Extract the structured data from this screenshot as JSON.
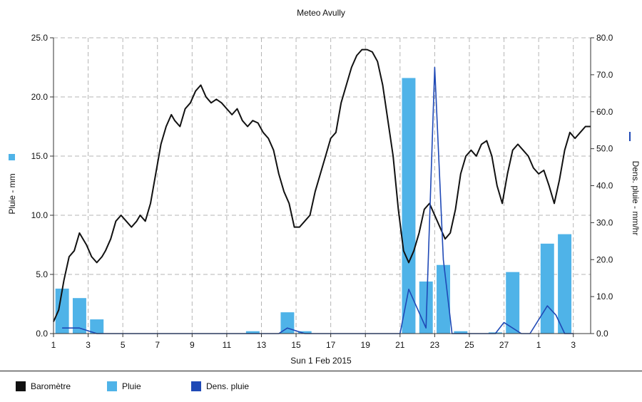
{
  "chart_data": {
    "type": "bar+line",
    "title": "Meteo  Avully",
    "xlabel": "Sun 1 Feb 2015",
    "ylabel_left": "Pluie - mm",
    "ylabel_right": "Dens. pluie - mm/hr",
    "x_ticks": [
      "1",
      "3",
      "5",
      "7",
      "9",
      "11",
      "13",
      "15",
      "17",
      "19",
      "21",
      "23",
      "25",
      "27",
      "1",
      "3"
    ],
    "xlim": [
      0,
      31
    ],
    "ylim_left": [
      0,
      25
    ],
    "yticks_left": [
      "0.0",
      "5.0",
      "10.0",
      "15.0",
      "20.0",
      "25.0"
    ],
    "ylim_right": [
      0,
      80
    ],
    "yticks_right": [
      "0.0",
      "10.0",
      "20.0",
      "30.0",
      "40.0",
      "50.0",
      "60.0",
      "70.0",
      "80.0"
    ],
    "grid": true,
    "legend_placement": "bottom",
    "series": [
      {
        "name": "Baromètre",
        "type": "line",
        "color": "#111111",
        "axis": "left",
        "x": [
          0,
          0.3,
          0.6,
          0.9,
          1.2,
          1.5,
          1.7,
          1.9,
          2.2,
          2.5,
          2.8,
          3.0,
          3.3,
          3.6,
          3.9,
          4.2,
          4.5,
          4.8,
          5.0,
          5.3,
          5.6,
          5.9,
          6.2,
          6.5,
          6.8,
          7.0,
          7.3,
          7.6,
          7.9,
          8.2,
          8.5,
          8.8,
          9.1,
          9.4,
          9.7,
          10.0,
          10.3,
          10.6,
          10.9,
          11.2,
          11.5,
          11.8,
          12.1,
          12.4,
          12.7,
          13.0,
          13.3,
          13.6,
          13.9,
          14.2,
          14.5,
          14.8,
          15.1,
          15.4,
          15.7,
          16.0,
          16.3,
          16.6,
          16.9,
          17.2,
          17.5,
          17.8,
          18.1,
          18.4,
          18.7,
          19.0,
          19.3,
          19.6,
          19.9,
          20.2,
          20.5,
          20.8,
          21.1,
          21.4,
          21.7,
          22.0,
          22.3,
          22.6,
          22.9,
          23.2,
          23.5,
          23.8,
          24.1,
          24.4,
          24.7,
          25.0,
          25.3,
          25.6,
          25.9,
          26.2,
          26.5,
          26.8,
          27.1,
          27.4,
          27.7,
          28.0,
          28.3,
          28.6,
          28.9,
          29.2,
          29.5,
          29.8,
          30.1,
          30.4,
          30.7,
          31.0
        ],
        "values": [
          1.0,
          2.0,
          4.5,
          6.5,
          7.0,
          8.5,
          8.0,
          7.5,
          6.5,
          6.0,
          6.5,
          7.0,
          8.0,
          9.5,
          10.0,
          9.5,
          9.0,
          9.5,
          10.0,
          9.5,
          11.0,
          13.5,
          16.0,
          17.5,
          18.5,
          18.0,
          17.5,
          19.0,
          19.5,
          20.5,
          21.0,
          20.0,
          19.5,
          19.8,
          19.5,
          19.0,
          18.5,
          19.0,
          18.0,
          17.5,
          18.0,
          17.8,
          17.0,
          16.5,
          15.5,
          13.5,
          12.0,
          11.0,
          9.0,
          9.0,
          9.5,
          10.0,
          12.0,
          13.5,
          15.0,
          16.5,
          17.0,
          19.5,
          21.0,
          22.5,
          23.5,
          24.0,
          24.0,
          23.8,
          23.0,
          21.0,
          18.0,
          15.0,
          10.5,
          7.0,
          6.0,
          7.0,
          8.5,
          10.5,
          11.0,
          10.0,
          9.0,
          8.0,
          8.5,
          10.5,
          13.5,
          15.0,
          15.5,
          15.0,
          16.0,
          16.3,
          15.0,
          12.5,
          11.0,
          13.5,
          15.5,
          16.0,
          15.5,
          15.0,
          14.0,
          13.5,
          13.8,
          12.5,
          11.0,
          13.0,
          15.5,
          17.0,
          16.5,
          17.0,
          17.5,
          17.5
        ]
      },
      {
        "name": "Pluie",
        "type": "bar",
        "color": "#4fb3e8",
        "axis": "left",
        "x": [
          0.5,
          1.5,
          2.5,
          11.5,
          13.5,
          14.5,
          20.5,
          21.5,
          22.5,
          23.5,
          25.5,
          26.5,
          28.5,
          29.5
        ],
        "values": [
          3.8,
          3.0,
          1.2,
          0.2,
          1.8,
          0.2,
          21.6,
          4.4,
          5.8,
          0.2,
          0.1,
          5.2,
          7.6,
          8.4
        ]
      },
      {
        "name": "Dens. pluie",
        "type": "line",
        "color": "#1f49b6",
        "axis": "right",
        "x": [
          0.5,
          1.5,
          2.5,
          13.0,
          13.5,
          14.5,
          20.0,
          20.5,
          21.5,
          22.0,
          22.5,
          23.0,
          23.5,
          25.5,
          26.0,
          27.0,
          27.5,
          28.5,
          29.0,
          29.5,
          30.0
        ],
        "values": [
          1.5,
          1.5,
          0,
          0,
          1.5,
          0,
          0,
          12.0,
          1.5,
          72.0,
          20.0,
          0,
          0,
          0,
          3.0,
          0,
          0,
          7.5,
          5.0,
          0,
          0
        ]
      }
    ]
  },
  "legend": {
    "items": [
      {
        "label": "Baromètre",
        "color": "#111111"
      },
      {
        "label": "Pluie",
        "color": "#4fb3e8"
      },
      {
        "label": "Dens. pluie",
        "color": "#1f49b6"
      }
    ]
  }
}
